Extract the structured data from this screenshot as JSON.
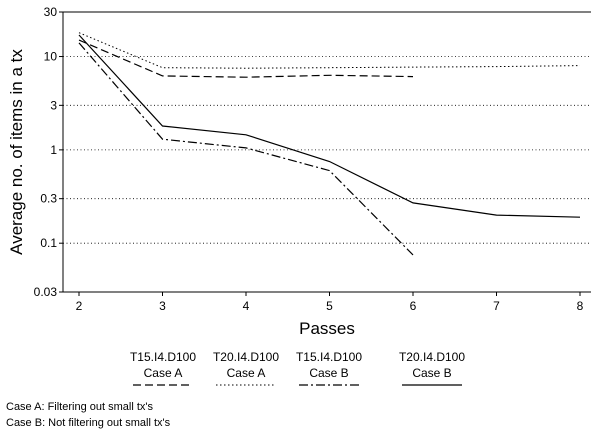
{
  "chart_data": {
    "type": "line",
    "title": "",
    "xlabel": "Passes",
    "ylabel": "Average no. of items in a tx",
    "y_scale": "log",
    "xlim": [
      2,
      8
    ],
    "ylim": [
      0.03,
      30
    ],
    "x_ticks": [
      2,
      3,
      4,
      5,
      6,
      7,
      8
    ],
    "y_ticks": [
      0.03,
      0.1,
      0.3,
      1,
      3,
      10,
      30
    ],
    "y_tick_labels": [
      "0.03",
      "0.1",
      "0.3",
      "1",
      "3",
      "10",
      "30"
    ],
    "grid": "horizontal dotted",
    "legend_position": "bottom",
    "series": [
      {
        "name": "T15.I4.D100",
        "case": "Case A",
        "style": "dashed",
        "x": [
          2,
          3,
          4,
          5,
          6
        ],
        "y": [
          15,
          6.2,
          6.0,
          6.3,
          6.1
        ]
      },
      {
        "name": "T20.I4.D100",
        "case": "Case A",
        "style": "dotted",
        "x": [
          2,
          3,
          4,
          5,
          6,
          7,
          8
        ],
        "y": [
          18,
          7.6,
          7.5,
          7.6,
          7.7,
          7.8,
          8.0
        ]
      },
      {
        "name": "T15.I4.D100",
        "case": "Case B",
        "style": "dashdot",
        "x": [
          2,
          3,
          4,
          5,
          6
        ],
        "y": [
          14,
          1.3,
          1.05,
          0.6,
          0.075
        ]
      },
      {
        "name": "T20.I4.D100",
        "case": "Case B",
        "style": "solid",
        "x": [
          2,
          3,
          4,
          5,
          6,
          7,
          8
        ],
        "y": [
          17,
          1.8,
          1.45,
          0.75,
          0.27,
          0.2,
          0.19
        ]
      }
    ]
  },
  "notes": [
    "Case A: Filtering out small tx's",
    "Case B: Not filtering out small tx's"
  ]
}
